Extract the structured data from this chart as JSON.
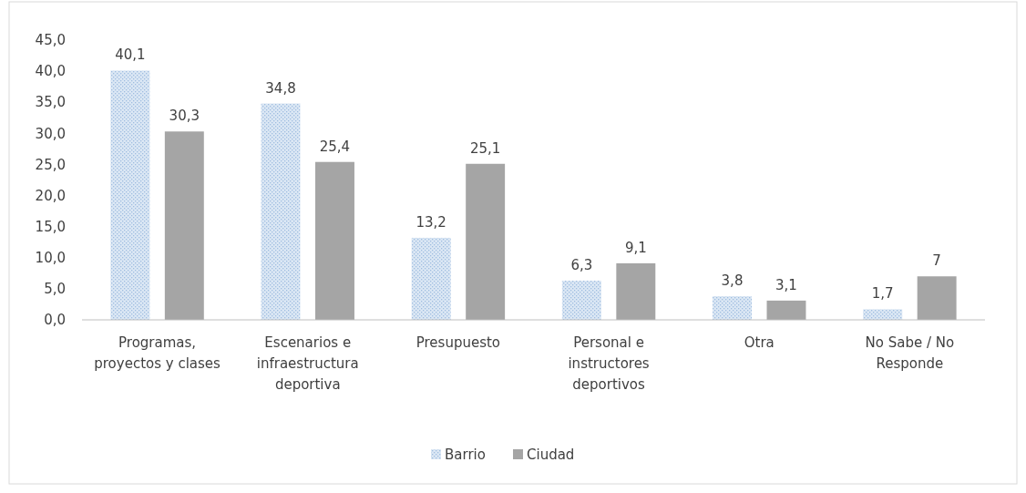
{
  "chart_data": {
    "type": "bar",
    "categories": [
      "Programas, proyectos y clases",
      "Escenarios e infraestructura deportiva",
      "Presupuesto",
      "Personal e instructores deportivos",
      "Otra",
      "No Sabe / No Responde"
    ],
    "series": [
      {
        "name": "Barrio",
        "color": "#dbe7f4",
        "values": [
          40.1,
          34.8,
          13.2,
          6.3,
          3.8,
          1.7
        ],
        "value_labels": [
          "40,1",
          "34,8",
          "13,2",
          "6,3",
          "3,8",
          "1,7"
        ]
      },
      {
        "name": "Ciudad",
        "color": "#a5a5a5",
        "values": [
          30.3,
          25.4,
          25.1,
          9.1,
          3.1,
          7
        ],
        "value_labels": [
          "30,3",
          "25,4",
          "25,1",
          "9,1",
          "3,1",
          "7"
        ]
      }
    ],
    "ylim": [
      0,
      45
    ],
    "yticks": [
      {
        "value": 0,
        "label": "0,0"
      },
      {
        "value": 5,
        "label": "5,0"
      },
      {
        "value": 10,
        "label": "10,0"
      },
      {
        "value": 15,
        "label": "15,0"
      },
      {
        "value": 20,
        "label": "20,0"
      },
      {
        "value": 25,
        "label": "25,0"
      },
      {
        "value": 30,
        "label": "30,0"
      },
      {
        "value": 35,
        "label": "35,0"
      },
      {
        "value": 40,
        "label": "40,0"
      },
      {
        "value": 45,
        "label": "45,0"
      }
    ],
    "grid": false,
    "legend": "bottom"
  }
}
